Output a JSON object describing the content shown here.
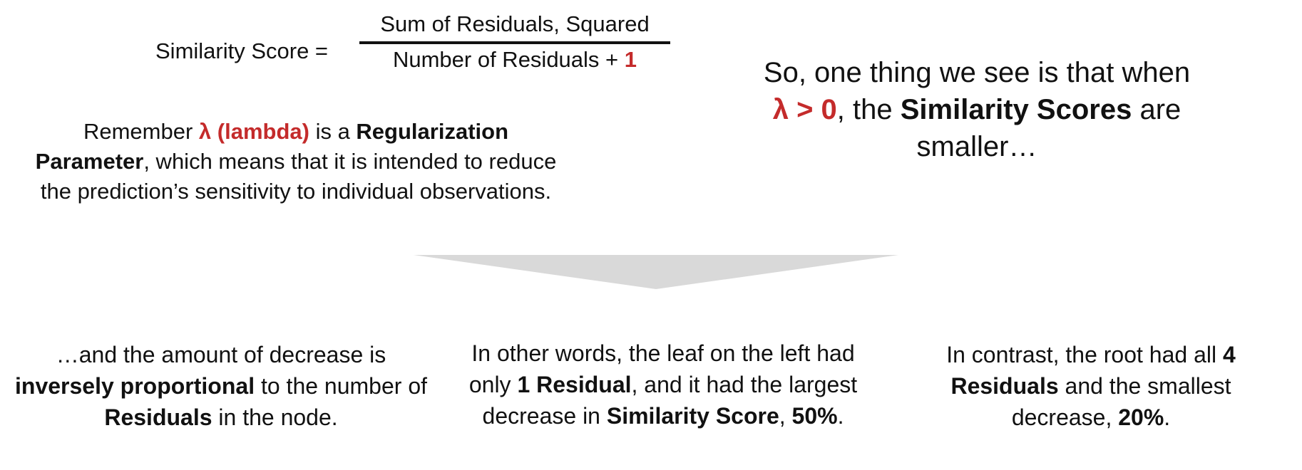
{
  "formula": {
    "label": "Similarity Score =",
    "numerator": "Sum of Residuals, Squared",
    "denominator_text": "Number of Residuals + ",
    "denominator_highlight": "1"
  },
  "reminder": {
    "t1": "Remember ",
    "t2": "λ (lambda)",
    "t3": " is a ",
    "t4": "Regularization Parameter",
    "t5": ", which means that it is intended to reduce the prediction’s sensitivity to individual observations."
  },
  "observation": {
    "t1": "So, one thing we see is that when ",
    "t2": "λ > 0",
    "t3": ", the ",
    "t4": "Similarity Scores",
    "t5": " are smaller…"
  },
  "columns": {
    "left": {
      "t1": "…and the amount of decrease is ",
      "t2": "inversely proportional",
      "t3": " to the number of ",
      "t4": "Residuals",
      "t5": " in the node."
    },
    "middle": {
      "t1": "In other words, the leaf on the left had only ",
      "t2": "1 Residual",
      "t3": ", and it had the largest decrease in ",
      "t4": "Similarity Score",
      "t5": ", ",
      "t6": "50%",
      "t7": "."
    },
    "right": {
      "t1": "In contrast, the root had all ",
      "t2": "4 Residuals",
      "t3": " and the smallest decrease, ",
      "t4": "20%",
      "t5": "."
    }
  },
  "colors": {
    "accent": "#c42b2b",
    "arrow": "#d9d9d9",
    "text": "#111111"
  }
}
